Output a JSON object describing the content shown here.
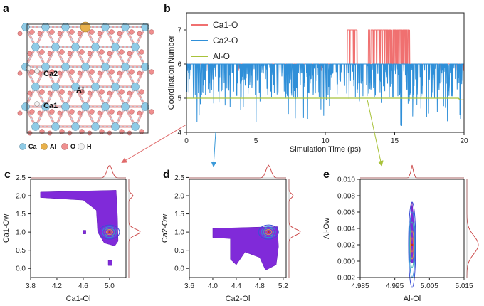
{
  "panels": {
    "a": {
      "label": "a",
      "site_labels": [
        "Ca2",
        "Al",
        "Ca1"
      ],
      "legend": [
        {
          "symbol": "Ca",
          "color": "#8fcbe6"
        },
        {
          "symbol": "Al",
          "color": "#e8b04a"
        },
        {
          "symbol": "O",
          "color": "#ef8f8f"
        },
        {
          "symbol": "H",
          "color": "#f2f2f2"
        }
      ]
    },
    "b": {
      "label": "b"
    },
    "c": {
      "label": "c"
    },
    "d": {
      "label": "d"
    },
    "e": {
      "label": "e"
    }
  },
  "colors": {
    "ca1": "#f07070",
    "ca2": "#2f8fd8",
    "al": "#a8c23a",
    "arrow_ca1": "#e06a6a",
    "arrow_ca2": "#3b9ad9",
    "arrow_al": "#a8c23a",
    "marginal": "#c94040"
  },
  "chart_data": [
    {
      "id": "b",
      "type": "line",
      "xlabel": "Simulation Time (ps)",
      "ylabel": "Coordination Number",
      "xlim": [
        0,
        20
      ],
      "ylim": [
        4,
        7.5
      ],
      "xticks": [
        0,
        5,
        10,
        15,
        20
      ],
      "yticks": [
        4,
        5,
        6,
        7
      ],
      "series": [
        {
          "name": "Ca1-O",
          "base": 6,
          "excursions": [
            [
              11.6,
              12.3,
              7
            ],
            [
              13.1,
              16.1,
              7
            ]
          ]
        },
        {
          "name": "Ca2-O",
          "base": 6,
          "range": [
            4.2,
            6
          ]
        },
        {
          "name": "Al-O",
          "constant": 5
        }
      ]
    },
    {
      "id": "c",
      "type": "heatmap",
      "xlabel": "Ca1-Ol",
      "ylabel": "Ca1-Ow",
      "xlim": [
        3.8,
        5.25
      ],
      "ylim": [
        -0.25,
        2.45
      ],
      "xticks": [
        "3.8",
        "4.2",
        "4.6",
        "5.0"
      ],
      "yticks": [
        "0.0",
        "0.5",
        "1.0",
        "1.5",
        "2.0",
        "2.5"
      ],
      "peak": {
        "x": 5.0,
        "y": 1.0
      }
    },
    {
      "id": "d",
      "type": "heatmap",
      "xlabel": "Ca2-Ol",
      "ylabel": "Ca2-Ow",
      "xlim": [
        3.6,
        5.25
      ],
      "ylim": [
        -0.25,
        2.45
      ],
      "xticks": [
        "3.6",
        "4.0",
        "4.4",
        "4.8",
        "5.2"
      ],
      "yticks": [
        "0.0",
        "0.5",
        "1.0",
        "1.5",
        "2.0",
        "2.5"
      ],
      "peak": {
        "x": 4.95,
        "y": 1.0
      }
    },
    {
      "id": "e",
      "type": "heatmap",
      "xlabel": "Al-Ol",
      "ylabel": "Al-Ow",
      "xlim": [
        4.985,
        5.015
      ],
      "ylim": [
        -0.002,
        0.01
      ],
      "xticks": [
        "4.985",
        "4.995",
        "5.005",
        "5.015"
      ],
      "yticks": [
        "-0.002",
        "0.000",
        "0.002",
        "0.004",
        "0.006",
        "0.008",
        "0.010"
      ],
      "peak": {
        "x": 5.0,
        "y": 0.002
      }
    }
  ]
}
